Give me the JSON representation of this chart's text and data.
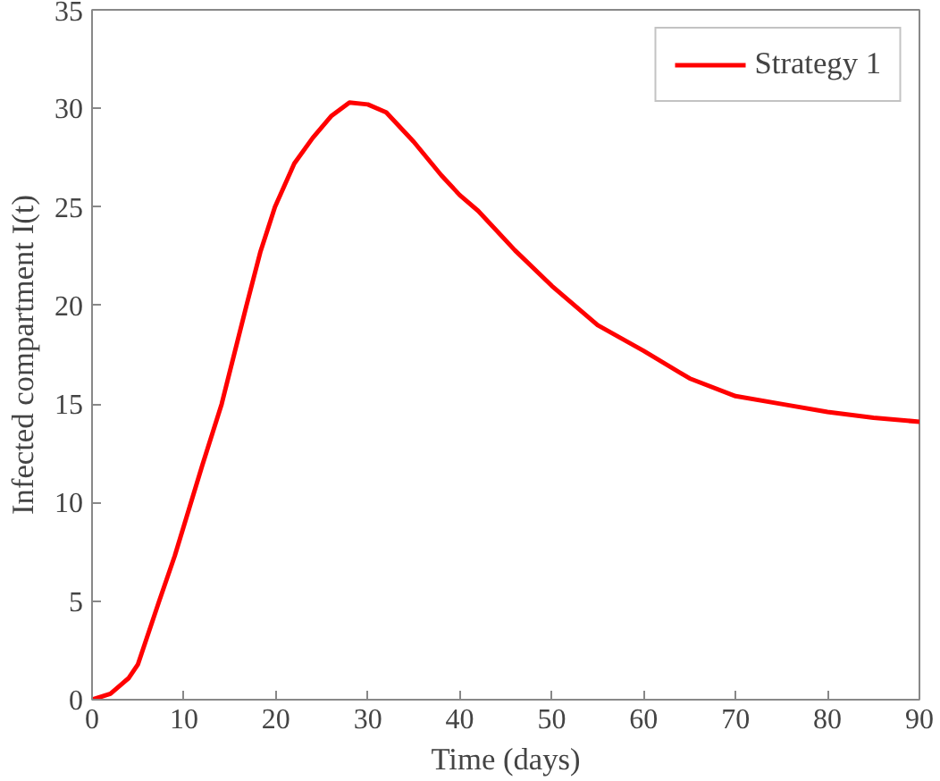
{
  "chart_data": {
    "type": "line",
    "xlabel": "Time (days)",
    "ylabel": "Infected compartment I(t)",
    "x": [
      0,
      2,
      4,
      5,
      7.3,
      9,
      10.5,
      12,
      14.1,
      15.5,
      16.8,
      18.3,
      19.9,
      22,
      24,
      26,
      28,
      30,
      32,
      35,
      38,
      40,
      42,
      46,
      50,
      55,
      60,
      65,
      70,
      75,
      80,
      85,
      90
    ],
    "series": [
      {
        "name": "Strategy 1",
        "color": "#ff0000",
        "values": [
          0,
          0.3,
          1.1,
          1.8,
          5,
          7.3,
          9.6,
          11.9,
          15,
          17.6,
          20,
          22.7,
          25,
          27.2,
          28.5,
          29.6,
          30.3,
          30.2,
          29.8,
          28.3,
          26.6,
          25.6,
          24.8,
          22.8,
          21.0,
          19.0,
          17.7,
          16.3,
          15.4,
          15.0,
          14.6,
          14.3,
          14.1
        ]
      }
    ],
    "xlim": [
      0,
      90
    ],
    "ylim": [
      0,
      35
    ],
    "xticks": [
      0,
      10,
      20,
      30,
      40,
      50,
      60,
      70,
      80,
      90
    ],
    "yticks": [
      0,
      5,
      10,
      15,
      20,
      25,
      30,
      35
    ],
    "legend": "top right",
    "grid": false,
    "line_style": "solid",
    "marker": "none"
  }
}
